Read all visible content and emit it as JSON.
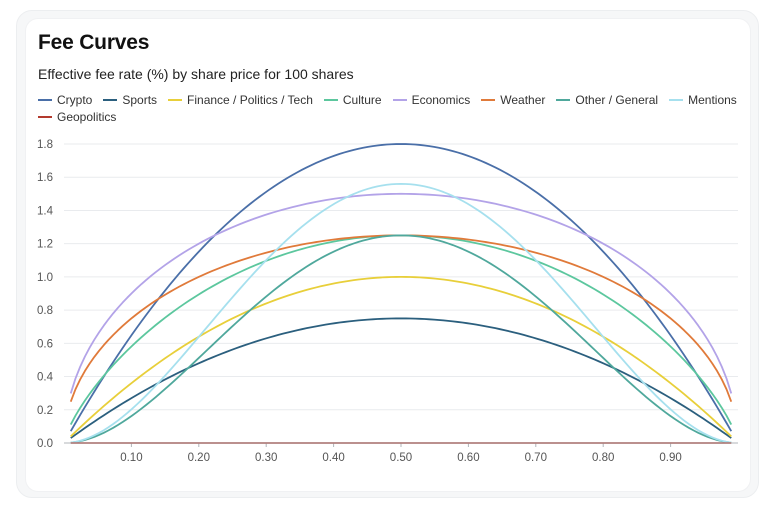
{
  "chart_data": {
    "type": "line",
    "title": "Fee Curves",
    "subtitle": "Effective fee rate (%) by share price for 100 shares",
    "xlabel": "",
    "ylabel": "",
    "xlim": [
      0.0,
      1.0
    ],
    "ylim": [
      0,
      1.8
    ],
    "x_ticks": [
      "0.10",
      "0.20",
      "0.30",
      "0.40",
      "0.50",
      "0.60",
      "0.70",
      "0.80",
      "0.90"
    ],
    "x_tick_values": [
      0.1,
      0.2,
      0.3,
      0.4,
      0.5,
      0.6,
      0.7,
      0.8,
      0.9
    ],
    "y_ticks": [
      "0.0",
      "0.2",
      "0.4",
      "0.6",
      "0.8",
      "1.0",
      "1.2",
      "1.4",
      "1.6",
      "1.8"
    ],
    "y_tick_values": [
      0,
      0.2,
      0.4,
      0.6,
      0.8,
      1.0,
      1.2,
      1.4,
      1.6,
      1.8
    ],
    "grid": true,
    "legend_position": "top",
    "x_range": [
      0.01,
      0.99
    ],
    "series": [
      {
        "name": "Crypto",
        "color": "#4a6fa8",
        "formula": "peak*4p(1-p)",
        "peak": 1.8,
        "exponent": 1
      },
      {
        "name": "Sports",
        "color": "#2b5f7e",
        "formula": "peak*4p(1-p)",
        "peak": 0.75,
        "exponent": 1
      },
      {
        "name": "Finance / Politics / Tech",
        "color": "#e8cf3a",
        "formula": "peak*4p(1-p)",
        "peak": 1.0,
        "exponent": 1
      },
      {
        "name": "Culture",
        "color": "#5cc79e",
        "formula": "peak*(4p(1-p))^0.75",
        "peak": 1.25,
        "exponent": 0.75
      },
      {
        "name": "Economics",
        "color": "#b3a3e8",
        "formula": "peak*(4p(1-p))^0.5",
        "peak": 1.5,
        "exponent": 0.5
      },
      {
        "name": "Weather",
        "color": "#e07a3a",
        "formula": "peak*(4p(1-p))^0.5",
        "peak": 1.25,
        "exponent": 0.5
      },
      {
        "name": "Other / General",
        "color": "#4fa89c",
        "formula": "peak*(4p(1-p))^2",
        "peak": 1.25,
        "exponent": 2
      },
      {
        "name": "Mentions",
        "color": "#a6e0ee",
        "formula": "peak*(4p(1-p))^2",
        "peak": 1.56,
        "exponent": 2
      },
      {
        "name": "Geopolitics",
        "color": "#b33a2e",
        "formula": "constant",
        "peak": 0.0,
        "exponent": 1
      }
    ]
  }
}
